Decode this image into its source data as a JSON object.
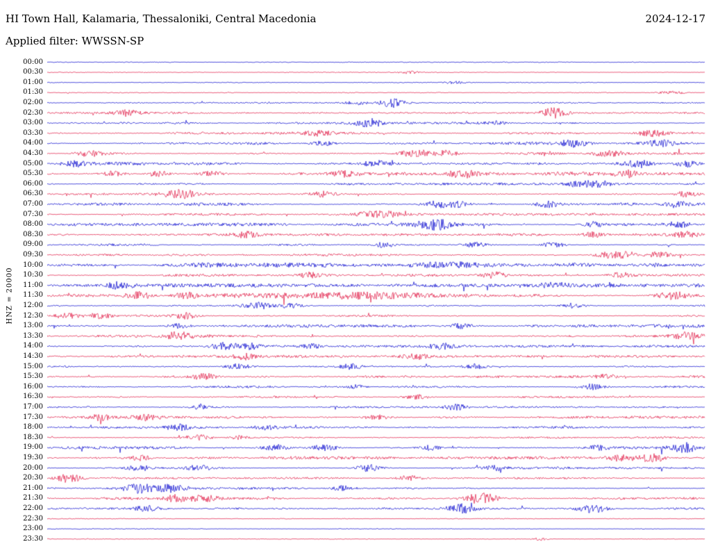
{
  "header": {
    "station": "HI Town Hall, Kalamaria, Thessaloniki, Central Macedonia",
    "date": "2024-12-17",
    "filter_label": "Applied filter: WWSSN-SP"
  },
  "axis": {
    "scale_label": "HNZ = 20000"
  },
  "colors": {
    "blue": "#0000cd",
    "red": "#e01440",
    "text": "#000000",
    "background": "#ffffff"
  },
  "chart_data": {
    "type": "line",
    "subtype": "seismogram-helicorder",
    "title": "HI Town Hall, Kalamaria, Thessaloniki, Central Macedonia",
    "date": "2024-12-17",
    "filter": "WWSSN-SP",
    "channel_scale": "HNZ = 20000",
    "row_interval_minutes": 30,
    "trace_color_cycle": [
      "blue",
      "red"
    ],
    "rows": [
      {
        "label": "00:00",
        "color": "blue",
        "base": 0.5,
        "busy": 0.08,
        "events": []
      },
      {
        "label": "00:30",
        "color": "red",
        "base": 0.5,
        "busy": 0.08,
        "events": [
          [
            0.55,
            2,
            10
          ]
        ]
      },
      {
        "label": "01:00",
        "color": "blue",
        "base": 0.5,
        "busy": 0.1,
        "events": [
          [
            0.62,
            2,
            10
          ]
        ]
      },
      {
        "label": "01:30",
        "color": "red",
        "base": 0.5,
        "busy": 0.12,
        "events": [
          [
            0.95,
            3,
            12
          ]
        ]
      },
      {
        "label": "02:00",
        "color": "blue",
        "base": 0.7,
        "busy": 0.3,
        "events": [
          [
            0.47,
            3,
            10
          ],
          [
            0.525,
            7,
            12
          ]
        ]
      },
      {
        "label": "02:30",
        "color": "red",
        "base": 0.8,
        "busy": 0.4,
        "events": [
          [
            0.12,
            4,
            14
          ],
          [
            0.77,
            7,
            12
          ]
        ]
      },
      {
        "label": "03:00",
        "color": "blue",
        "base": 0.8,
        "busy": 0.4,
        "events": [
          [
            0.49,
            6,
            14
          ],
          [
            0.68,
            3,
            12
          ]
        ]
      },
      {
        "label": "03:30",
        "color": "red",
        "base": 0.9,
        "busy": 0.5,
        "events": [
          [
            0.41,
            4,
            14
          ],
          [
            0.92,
            5,
            16
          ]
        ]
      },
      {
        "label": "04:00",
        "color": "blue",
        "base": 1.0,
        "busy": 0.6,
        "events": [
          [
            0.42,
            4,
            12
          ],
          [
            0.8,
            5,
            14
          ],
          [
            0.93,
            4,
            14
          ]
        ]
      },
      {
        "label": "04:30",
        "color": "red",
        "base": 1.0,
        "busy": 0.6,
        "events": [
          [
            0.065,
            5,
            14
          ],
          [
            0.56,
            5,
            16
          ],
          [
            0.61,
            4,
            12
          ],
          [
            0.85,
            4,
            14
          ]
        ]
      },
      {
        "label": "05:00",
        "color": "blue",
        "base": 1.0,
        "busy": 0.65,
        "events": [
          [
            0.04,
            4,
            12
          ],
          [
            0.5,
            4,
            12
          ],
          [
            0.9,
            5,
            14
          ],
          [
            0.97,
            5,
            14
          ]
        ]
      },
      {
        "label": "05:30",
        "color": "red",
        "base": 1.2,
        "busy": 0.8,
        "events": [
          [
            0.1,
            4,
            12
          ],
          [
            0.17,
            4,
            12
          ],
          [
            0.25,
            4,
            12
          ],
          [
            0.45,
            4,
            12
          ],
          [
            0.63,
            5,
            14
          ],
          [
            0.88,
            4,
            12
          ]
        ]
      },
      {
        "label": "06:00",
        "color": "blue",
        "base": 0.9,
        "busy": 0.5,
        "events": [
          [
            0.81,
            5,
            12
          ],
          [
            0.84,
            4,
            12
          ]
        ]
      },
      {
        "label": "06:30",
        "color": "red",
        "base": 0.9,
        "busy": 0.5,
        "events": [
          [
            0.19,
            4,
            12
          ],
          [
            0.21,
            5,
            12
          ],
          [
            0.42,
            4,
            12
          ],
          [
            0.97,
            4,
            12
          ]
        ]
      },
      {
        "label": "07:00",
        "color": "blue",
        "base": 1.0,
        "busy": 0.6,
        "events": [
          [
            0.59,
            4,
            12
          ],
          [
            0.62,
            5,
            14
          ],
          [
            0.76,
            4,
            12
          ],
          [
            0.96,
            4,
            12
          ]
        ]
      },
      {
        "label": "07:30",
        "color": "red",
        "base": 0.9,
        "busy": 0.5,
        "events": [
          [
            0.49,
            4,
            14
          ],
          [
            0.52,
            4,
            12
          ]
        ]
      },
      {
        "label": "08:00",
        "color": "blue",
        "base": 1.0,
        "busy": 0.6,
        "events": [
          [
            0.58,
            5,
            14
          ],
          [
            0.6,
            4,
            12
          ],
          [
            0.83,
            4,
            12
          ],
          [
            0.96,
            4,
            12
          ]
        ]
      },
      {
        "label": "08:30",
        "color": "red",
        "base": 0.9,
        "busy": 0.5,
        "events": [
          [
            0.3,
            4,
            14
          ],
          [
            0.83,
            4,
            12
          ],
          [
            0.97,
            4,
            12
          ]
        ]
      },
      {
        "label": "09:00",
        "color": "blue",
        "base": 0.9,
        "busy": 0.5,
        "events": [
          [
            0.51,
            4,
            12
          ],
          [
            0.65,
            4,
            12
          ],
          [
            0.77,
            4,
            12
          ]
        ]
      },
      {
        "label": "09:30",
        "color": "red",
        "base": 0.9,
        "busy": 0.5,
        "events": [
          [
            0.85,
            4,
            12
          ],
          [
            0.88,
            4,
            12
          ],
          [
            0.93,
            4,
            12
          ]
        ]
      },
      {
        "label": "10:00",
        "color": "blue",
        "base": 1.3,
        "busy": 0.85,
        "events": [
          [
            0.25,
            3,
            40
          ],
          [
            0.6,
            3,
            50
          ]
        ]
      },
      {
        "label": "10:30",
        "color": "red",
        "base": 0.9,
        "busy": 0.5,
        "events": [
          [
            0.4,
            4,
            12
          ],
          [
            0.68,
            4,
            12
          ],
          [
            0.87,
            4,
            12
          ]
        ]
      },
      {
        "label": "11:00",
        "color": "blue",
        "base": 1.1,
        "busy": 0.7,
        "events": [
          [
            0.11,
            4,
            12
          ],
          [
            0.77,
            4,
            12
          ]
        ]
      },
      {
        "label": "11:30",
        "color": "red",
        "base": 1.3,
        "busy": 0.85,
        "events": [
          [
            0.14,
            5,
            14
          ],
          [
            0.21,
            4,
            12
          ],
          [
            0.5,
            3,
            60
          ],
          [
            0.95,
            5,
            14
          ]
        ]
      },
      {
        "label": "12:00",
        "color": "blue",
        "base": 0.9,
        "busy": 0.5,
        "events": [
          [
            0.32,
            5,
            14
          ],
          [
            0.37,
            4,
            12
          ],
          [
            0.8,
            4,
            12
          ]
        ]
      },
      {
        "label": "12:30",
        "color": "red",
        "base": 0.8,
        "busy": 0.4,
        "events": [
          [
            0.03,
            4,
            12
          ],
          [
            0.08,
            4,
            12
          ],
          [
            0.21,
            4,
            12
          ]
        ]
      },
      {
        "label": "13:00",
        "color": "blue",
        "base": 1.0,
        "busy": 0.6,
        "events": [
          [
            0.2,
            4,
            12
          ],
          [
            0.63,
            4,
            12
          ]
        ]
      },
      {
        "label": "13:30",
        "color": "red",
        "base": 1.1,
        "busy": 0.7,
        "events": [
          [
            0.2,
            5,
            14
          ],
          [
            0.97,
            4,
            12
          ]
        ]
      },
      {
        "label": "14:00",
        "color": "blue",
        "base": 0.9,
        "busy": 0.5,
        "events": [
          [
            0.27,
            5,
            14
          ],
          [
            0.31,
            4,
            12
          ],
          [
            0.4,
            3,
            10
          ],
          [
            0.6,
            4,
            12
          ]
        ]
      },
      {
        "label": "14:30",
        "color": "red",
        "base": 0.9,
        "busy": 0.5,
        "events": [
          [
            0.3,
            4,
            12
          ],
          [
            0.56,
            4,
            12
          ]
        ]
      },
      {
        "label": "15:00",
        "color": "blue",
        "base": 0.9,
        "busy": 0.5,
        "events": [
          [
            0.29,
            4,
            12
          ],
          [
            0.46,
            4,
            12
          ],
          [
            0.65,
            4,
            12
          ]
        ]
      },
      {
        "label": "15:30",
        "color": "red",
        "base": 0.9,
        "busy": 0.5,
        "events": [
          [
            0.24,
            4,
            12
          ],
          [
            0.85,
            3,
            10
          ]
        ]
      },
      {
        "label": "16:00",
        "color": "blue",
        "base": 0.9,
        "busy": 0.5,
        "events": [
          [
            0.47,
            3,
            10
          ],
          [
            0.83,
            4,
            12
          ]
        ]
      },
      {
        "label": "16:30",
        "color": "red",
        "base": 0.8,
        "busy": 0.4,
        "events": [
          [
            0.56,
            4,
            12
          ]
        ]
      },
      {
        "label": "17:00",
        "color": "blue",
        "base": 0.8,
        "busy": 0.4,
        "events": [
          [
            0.23,
            3,
            10
          ],
          [
            0.62,
            4,
            12
          ]
        ]
      },
      {
        "label": "17:30",
        "color": "red",
        "base": 0.9,
        "busy": 0.5,
        "events": [
          [
            0.08,
            4,
            12
          ],
          [
            0.15,
            4,
            12
          ],
          [
            0.5,
            4,
            12
          ]
        ]
      },
      {
        "label": "18:00",
        "color": "blue",
        "base": 0.9,
        "busy": 0.5,
        "events": [
          [
            0.2,
            4,
            12
          ],
          [
            0.33,
            3,
            10
          ]
        ]
      },
      {
        "label": "18:30",
        "color": "red",
        "base": 0.8,
        "busy": 0.4,
        "events": [
          [
            0.23,
            4,
            12
          ],
          [
            0.29,
            3,
            10
          ]
        ]
      },
      {
        "label": "19:00",
        "color": "blue",
        "base": 1.0,
        "busy": 0.6,
        "events": [
          [
            0.35,
            4,
            12
          ],
          [
            0.42,
            5,
            14
          ],
          [
            0.58,
            4,
            12
          ],
          [
            0.84,
            4,
            12
          ],
          [
            0.97,
            6,
            14
          ]
        ]
      },
      {
        "label": "19:30",
        "color": "red",
        "base": 1.0,
        "busy": 0.6,
        "events": [
          [
            0.14,
            4,
            12
          ],
          [
            0.87,
            4,
            12
          ],
          [
            0.92,
            6,
            14
          ]
        ]
      },
      {
        "label": "20:00",
        "color": "blue",
        "base": 0.9,
        "busy": 0.5,
        "events": [
          [
            0.14,
            4,
            12
          ],
          [
            0.23,
            4,
            12
          ],
          [
            0.49,
            5,
            14
          ],
          [
            0.68,
            3,
            10
          ]
        ]
      },
      {
        "label": "20:30",
        "color": "red",
        "base": 0.8,
        "busy": 0.4,
        "events": [
          [
            0.02,
            4,
            12
          ],
          [
            0.04,
            4,
            12
          ],
          [
            0.55,
            4,
            12
          ]
        ]
      },
      {
        "label": "21:00",
        "color": "blue",
        "base": 0.9,
        "busy": 0.5,
        "events": [
          [
            0.14,
            6,
            16
          ],
          [
            0.19,
            5,
            14
          ],
          [
            0.45,
            4,
            12
          ]
        ]
      },
      {
        "label": "21:30",
        "color": "red",
        "base": 0.9,
        "busy": 0.5,
        "events": [
          [
            0.2,
            5,
            14
          ],
          [
            0.24,
            4,
            12
          ],
          [
            0.65,
            6,
            16
          ],
          [
            0.67,
            4,
            12
          ]
        ]
      },
      {
        "label": "22:00",
        "color": "blue",
        "base": 0.8,
        "busy": 0.4,
        "events": [
          [
            0.15,
            4,
            12
          ],
          [
            0.63,
            6,
            14
          ],
          [
            0.83,
            6,
            14
          ]
        ]
      },
      {
        "label": "22:30",
        "color": "red",
        "base": 0.5,
        "busy": 0.08,
        "events": []
      },
      {
        "label": "23:00",
        "color": "blue",
        "base": 0.5,
        "busy": 0.08,
        "events": []
      },
      {
        "label": "23:30",
        "color": "red",
        "base": 0.5,
        "busy": 0.08,
        "events": [
          [
            0.75,
            2,
            8
          ]
        ]
      }
    ]
  },
  "layout_values": {
    "rows_start_label": "00:00",
    "rows_end_label": "23:30"
  }
}
